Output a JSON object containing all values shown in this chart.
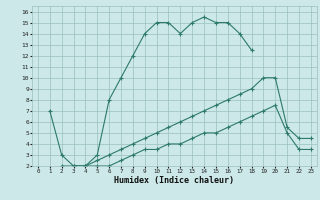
{
  "xlabel": "Humidex (Indice chaleur)",
  "bg_color": "#cce8e8",
  "grid_color": "#9bbfbf",
  "line_color": "#2d7a6a",
  "xlim": [
    -0.5,
    23.5
  ],
  "ylim": [
    2,
    16.5
  ],
  "xticks": [
    0,
    1,
    2,
    3,
    4,
    5,
    6,
    7,
    8,
    9,
    10,
    11,
    12,
    13,
    14,
    15,
    16,
    17,
    18,
    19,
    20,
    21,
    22,
    23
  ],
  "yticks": [
    2,
    3,
    4,
    5,
    6,
    7,
    8,
    9,
    10,
    11,
    12,
    13,
    14,
    15,
    16
  ],
  "line1_x": [
    1,
    2,
    3,
    4,
    5,
    6,
    7,
    8,
    9,
    10,
    11,
    12,
    13,
    14,
    15,
    16,
    17,
    18
  ],
  "line1_y": [
    7,
    3,
    2,
    2,
    3,
    8,
    10,
    12,
    14,
    15,
    15,
    14,
    15,
    15.5,
    15,
    15,
    14,
    12.5
  ],
  "line2_x": [
    2,
    3,
    4,
    5,
    6,
    7,
    8,
    9,
    10,
    11,
    12,
    13,
    14,
    15,
    16,
    17,
    18,
    19,
    20,
    21,
    22,
    23
  ],
  "line2_y": [
    2,
    2,
    2,
    2.5,
    3,
    3.5,
    4,
    4.5,
    5,
    5.5,
    6,
    6.5,
    7,
    7.5,
    8,
    8.5,
    9,
    10,
    10,
    5.5,
    4.5,
    4.5
  ],
  "line3_x": [
    3,
    4,
    5,
    6,
    7,
    8,
    9,
    10,
    11,
    12,
    13,
    14,
    15,
    16,
    17,
    18,
    19,
    20,
    21,
    22,
    23
  ],
  "line3_y": [
    2,
    2,
    2,
    2,
    2.5,
    3,
    3.5,
    3.5,
    4,
    4,
    4.5,
    5,
    5,
    5.5,
    6,
    6.5,
    7,
    7.5,
    5,
    3.5,
    3.5
  ]
}
